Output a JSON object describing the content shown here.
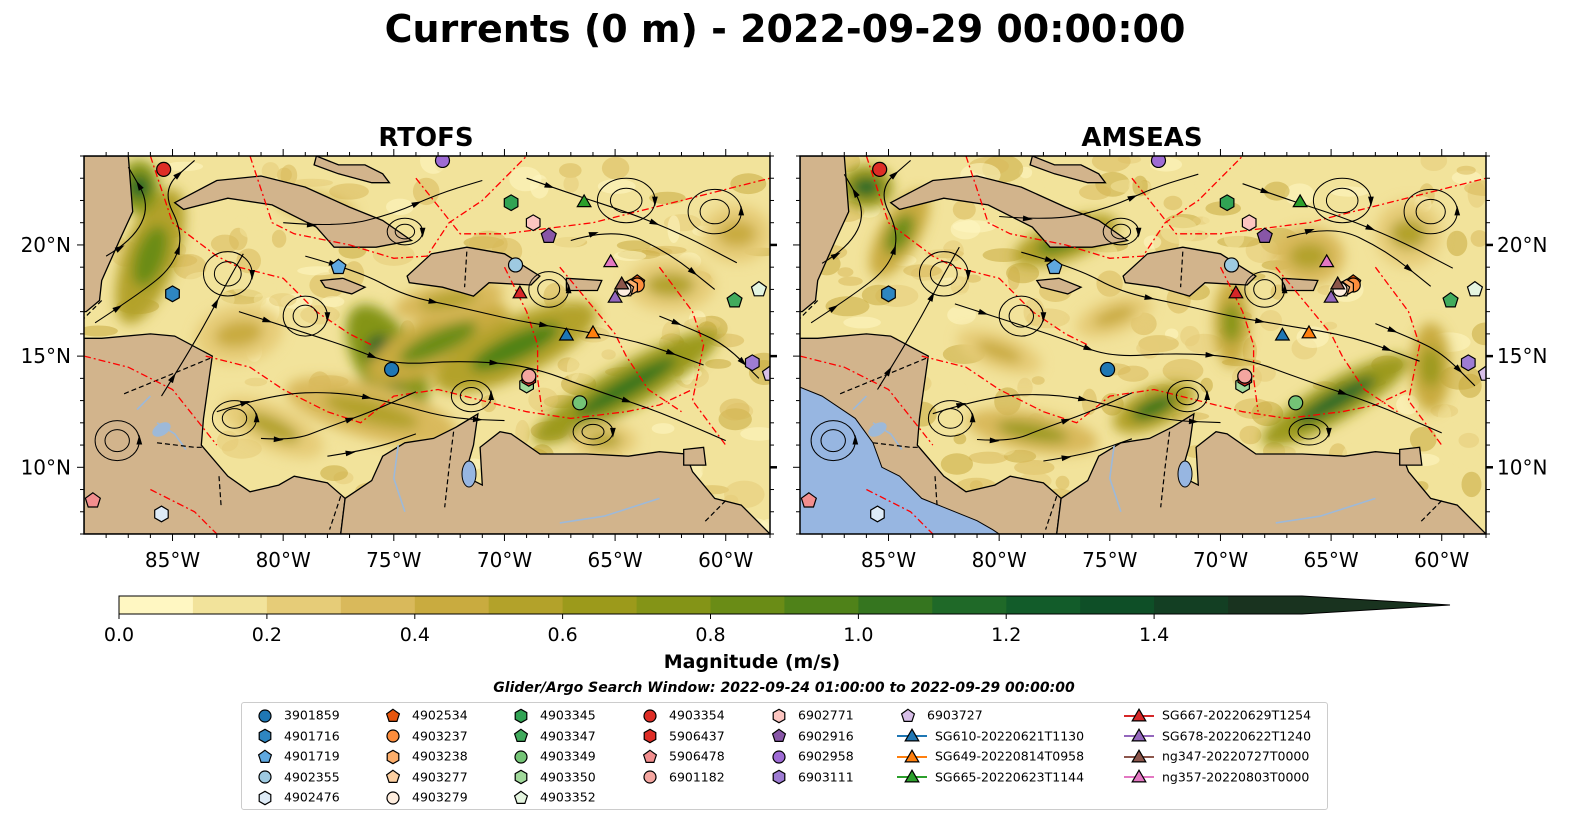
{
  "figure": {
    "title": "Currents (0 m) - 2022-09-29 00:00:00",
    "panels": [
      {
        "title": "RTOFS"
      },
      {
        "title": "AMSEAS"
      }
    ],
    "lon_ticks": [
      "85°W",
      "80°W",
      "75°W",
      "70°W",
      "65°W",
      "60°W"
    ],
    "lat_ticks": [
      "20°N",
      "15°N",
      "10°N"
    ],
    "colorbar": {
      "label": "Magnitude (m/s)",
      "ticks": [
        "0.0",
        "0.2",
        "0.4",
        "0.6",
        "0.8",
        "1.0",
        "1.2",
        "1.4"
      ],
      "colors": [
        "#fff7c2",
        "#f2e39b",
        "#e6cc78",
        "#d9b95b",
        "#c9ab3f",
        "#b3a22a",
        "#9c9a1b",
        "#849417",
        "#6a8c16",
        "#4f8219",
        "#35751f",
        "#1f6928",
        "#125c2a",
        "#0e4f27",
        "#133f23",
        "#19331f"
      ]
    },
    "search_window": "Glider/Argo Search Window: 2022-09-24 01:00:00 to 2022-09-29 00:00:00"
  },
  "chart_data": {
    "type": "heatmap",
    "variable": "Surface current magnitude",
    "units": "m/s",
    "depth": "0 m",
    "valid_time": "2022-09-29 00:00:00",
    "models": [
      "RTOFS",
      "AMSEAS"
    ],
    "extent": {
      "lon": [
        -89,
        -58
      ],
      "lat": [
        7,
        24
      ]
    },
    "color_range": [
      0.0,
      1.5
    ],
    "colormap": "speed",
    "markers": [
      {
        "id": "3901859",
        "kind": "argo",
        "shape": "circle",
        "color": "#1f77b4",
        "lon": -75.1,
        "lat": 14.4
      },
      {
        "id": "4901716",
        "kind": "argo",
        "shape": "hexagon",
        "color": "#2e86c1",
        "lon": -85.0,
        "lat": 17.8
      },
      {
        "id": "4901719",
        "kind": "argo",
        "shape": "pentagon",
        "color": "#5fa8e0",
        "lon": -77.5,
        "lat": 19.0
      },
      {
        "id": "4902355",
        "kind": "argo",
        "shape": "circle",
        "color": "#9ecae1",
        "lon": -69.5,
        "lat": 19.1
      },
      {
        "id": "4902476",
        "kind": "argo",
        "shape": "hexagon",
        "color": "#deebf7",
        "lon": -85.5,
        "lat": 7.9
      },
      {
        "id": "4902534",
        "kind": "argo",
        "shape": "pentagon",
        "color": "#e6550d",
        "lon": -64.0,
        "lat": 18.3
      },
      {
        "id": "4903237",
        "kind": "argo",
        "shape": "circle",
        "color": "#fd8d3c",
        "lon": -64.0,
        "lat": 18.2
      },
      {
        "id": "4903238",
        "kind": "argo",
        "shape": "hexagon",
        "color": "#fdae6b",
        "lon": -64.3,
        "lat": 18.1
      },
      {
        "id": "4903277",
        "kind": "argo",
        "shape": "pentagon",
        "color": "#fdd0a2",
        "lon": -64.5,
        "lat": 18.0
      },
      {
        "id": "4903279",
        "kind": "argo",
        "shape": "circle",
        "color": "#feedde",
        "lon": -64.6,
        "lat": 18.0
      },
      {
        "id": "4903345",
        "kind": "argo",
        "shape": "hexagon",
        "color": "#31a354",
        "lon": -69.7,
        "lat": 21.9
      },
      {
        "id": "4903347",
        "kind": "argo",
        "shape": "pentagon",
        "color": "#41ab5d",
        "lon": -59.6,
        "lat": 17.5
      },
      {
        "id": "4903349",
        "kind": "argo",
        "shape": "circle",
        "color": "#74c476",
        "lon": -66.6,
        "lat": 12.9
      },
      {
        "id": "4903350",
        "kind": "argo",
        "shape": "hexagon",
        "color": "#a1d99b",
        "lon": -69.0,
        "lat": 13.7
      },
      {
        "id": "4903352",
        "kind": "argo",
        "shape": "pentagon",
        "color": "#e5f5e0",
        "lon": -58.5,
        "lat": 18.0
      },
      {
        "id": "4903354",
        "kind": "argo",
        "shape": "circle",
        "color": "#de2d26",
        "lon": -85.4,
        "lat": 23.4
      },
      {
        "id": "5906437",
        "kind": "argo",
        "shape": "hexagon",
        "color": "#de2d26",
        "lon": -68.9,
        "lat": 14.0
      },
      {
        "id": "5906478",
        "kind": "argo",
        "shape": "pentagon",
        "color": "#f28e8e",
        "lon": -88.6,
        "lat": 8.5
      },
      {
        "id": "6901182",
        "kind": "argo",
        "shape": "circle",
        "color": "#f4a6a0",
        "lon": -68.9,
        "lat": 14.1
      },
      {
        "id": "6902771",
        "kind": "argo",
        "shape": "hexagon",
        "color": "#fcc5c0",
        "lon": -68.7,
        "lat": 21.0
      },
      {
        "id": "6902916",
        "kind": "argo",
        "shape": "pentagon",
        "color": "#8856a7",
        "lon": -68.0,
        "lat": 20.4
      },
      {
        "id": "6902958",
        "kind": "argo",
        "shape": "circle",
        "color": "#9e6bd4",
        "lon": -72.8,
        "lat": 23.8
      },
      {
        "id": "6903111",
        "kind": "argo",
        "shape": "hexagon",
        "color": "#9e7cd3",
        "lon": -58.8,
        "lat": 14.7
      },
      {
        "id": "6903727",
        "kind": "argo",
        "shape": "pentagon",
        "color": "#d8bfe8",
        "lon": -58.0,
        "lat": 14.2
      },
      {
        "id": "SG610-20220621T1130",
        "kind": "glider",
        "shape": "triangle",
        "color": "#1f77b4",
        "lon": -67.2,
        "lat": 15.9
      },
      {
        "id": "SG649-20220814T0958",
        "kind": "glider",
        "shape": "triangle",
        "color": "#ff7f0e",
        "lon": -66.0,
        "lat": 16.0
      },
      {
        "id": "SG665-20220623T1144",
        "kind": "glider",
        "shape": "triangle",
        "color": "#2ca02c",
        "lon": -66.4,
        "lat": 21.9
      },
      {
        "id": "SG667-20220629T1254",
        "kind": "glider",
        "shape": "triangle",
        "color": "#d62728",
        "lon": -69.3,
        "lat": 17.8
      },
      {
        "id": "SG678-20220622T1240",
        "kind": "glider",
        "shape": "triangle",
        "color": "#9467bd",
        "lon": -65.0,
        "lat": 17.6
      },
      {
        "id": "ng347-20220727T0000",
        "kind": "glider",
        "shape": "triangle",
        "color": "#8c564b",
        "lon": -64.7,
        "lat": 18.2
      },
      {
        "id": "ng357-20220803T0000",
        "kind": "glider",
        "shape": "triangle",
        "color": "#e377c2",
        "lon": -65.2,
        "lat": 19.2
      }
    ]
  },
  "legend": {
    "columns": [
      [
        {
          "label": "3901859",
          "shape": "circle",
          "color": "#1f77b4"
        },
        {
          "label": "4901716",
          "shape": "hexagon",
          "color": "#2e86c1"
        },
        {
          "label": "4901719",
          "shape": "pentagon",
          "color": "#5fa8e0"
        },
        {
          "label": "4902355",
          "shape": "circle",
          "color": "#9ecae1"
        },
        {
          "label": "4902476",
          "shape": "hexagon",
          "color": "#deebf7"
        }
      ],
      [
        {
          "label": "4902534",
          "shape": "pentagon",
          "color": "#e6550d"
        },
        {
          "label": "4903237",
          "shape": "circle",
          "color": "#fd8d3c"
        },
        {
          "label": "4903238",
          "shape": "hexagon",
          "color": "#fdae6b"
        },
        {
          "label": "4903277",
          "shape": "pentagon",
          "color": "#fdd0a2"
        },
        {
          "label": "4903279",
          "shape": "circle",
          "color": "#feedde"
        }
      ],
      [
        {
          "label": "4903345",
          "shape": "hexagon",
          "color": "#31a354"
        },
        {
          "label": "4903347",
          "shape": "pentagon",
          "color": "#41ab5d"
        },
        {
          "label": "4903349",
          "shape": "circle",
          "color": "#74c476"
        },
        {
          "label": "4903350",
          "shape": "hexagon",
          "color": "#a1d99b"
        },
        {
          "label": "4903352",
          "shape": "pentagon",
          "color": "#e5f5e0"
        }
      ],
      [
        {
          "label": "4903354",
          "shape": "circle",
          "color": "#de2d26"
        },
        {
          "label": "5906437",
          "shape": "hexagon",
          "color": "#de2d26"
        },
        {
          "label": "5906478",
          "shape": "pentagon",
          "color": "#f28e8e"
        },
        {
          "label": "6901182",
          "shape": "circle",
          "color": "#f4a6a0"
        }
      ],
      [
        {
          "label": "6902771",
          "shape": "hexagon",
          "color": "#fcc5c0"
        },
        {
          "label": "6902916",
          "shape": "pentagon",
          "color": "#8856a7"
        },
        {
          "label": "6902958",
          "shape": "circle",
          "color": "#9e6bd4"
        },
        {
          "label": "6903111",
          "shape": "hexagon",
          "color": "#9e7cd3"
        }
      ],
      [
        {
          "label": "6903727",
          "shape": "pentagon",
          "color": "#d8bfe8"
        },
        {
          "label": "SG610-20220621T1130",
          "shape": "triangle-line",
          "color": "#1f77b4"
        },
        {
          "label": "SG649-20220814T0958",
          "shape": "triangle-line",
          "color": "#ff7f0e"
        },
        {
          "label": "SG665-20220623T1144",
          "shape": "triangle-line",
          "color": "#2ca02c"
        }
      ],
      [
        {
          "label": "SG667-20220629T1254",
          "shape": "triangle-line",
          "color": "#d62728"
        },
        {
          "label": "SG678-20220622T1240",
          "shape": "triangle-line",
          "color": "#9467bd"
        },
        {
          "label": "ng347-20220727T0000",
          "shape": "triangle-line",
          "color": "#8c564b"
        },
        {
          "label": "ng357-20220803T0000",
          "shape": "triangle-line",
          "color": "#e377c2"
        }
      ]
    ]
  },
  "colors": {
    "land": "#d2b48c",
    "ocean_masked": "#97b6e1",
    "eez_lines": "#ff0000",
    "streamlines": "#000000",
    "rivers": "#9db9d9"
  }
}
